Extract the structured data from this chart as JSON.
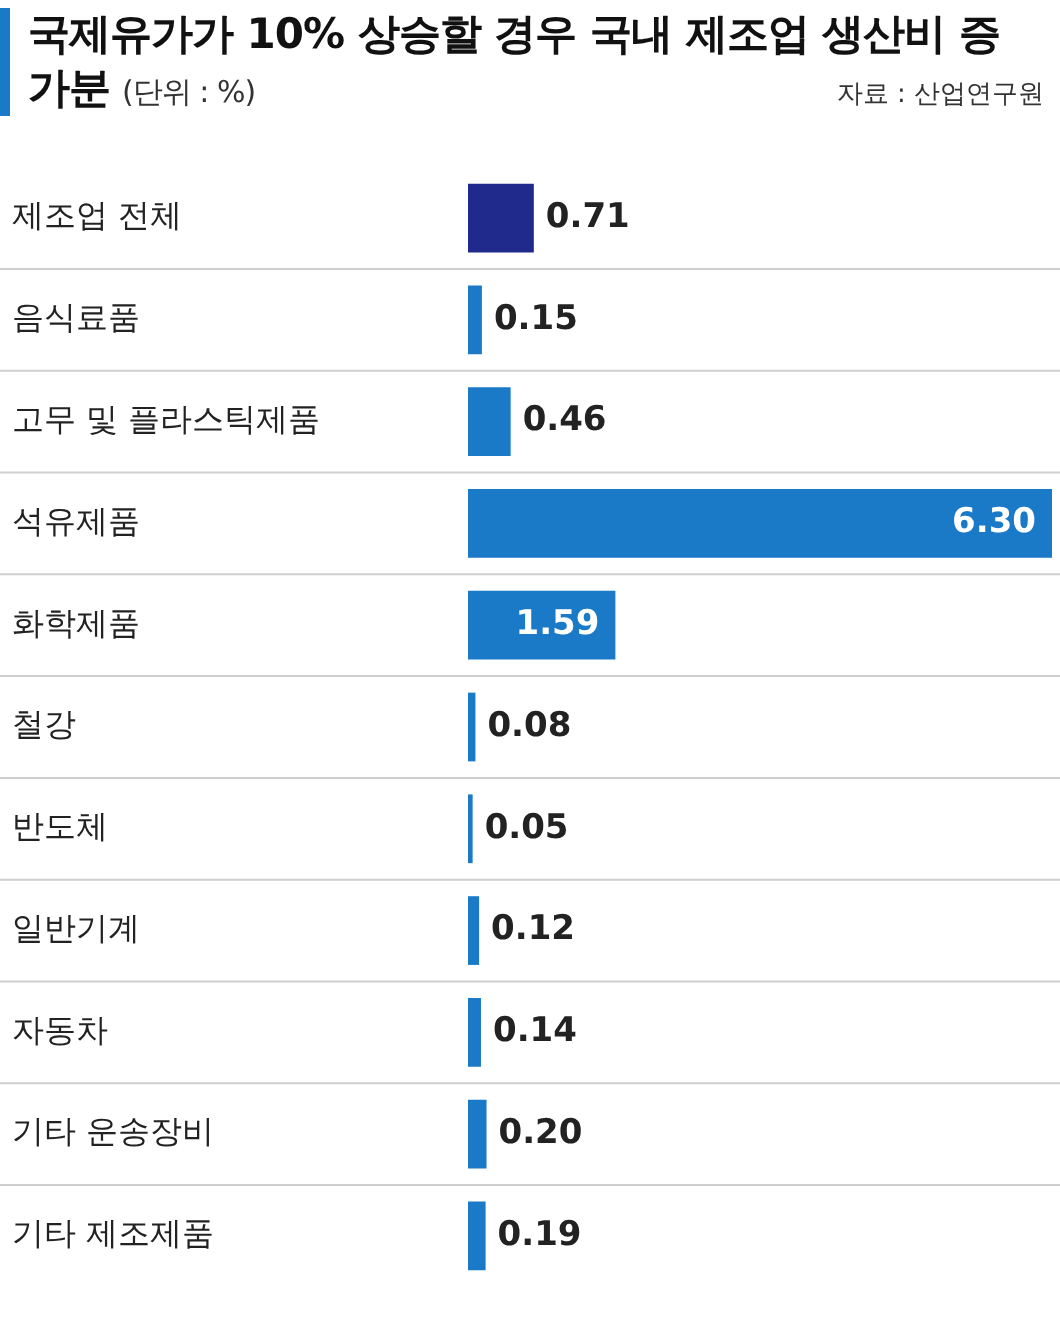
{
  "chart_data": {
    "type": "bar",
    "orientation": "horizontal",
    "title": "국제유가가 10% 상승할 경우 국내 제조업 생산비 증가분",
    "subtitle": "(단위 : %)",
    "annotations": [
      "자료 : 산업연구원"
    ],
    "categories": [
      "제조업 전체",
      "음식료품",
      "고무 및 플라스틱제품",
      "석유제품",
      "화학제품",
      "철강",
      "반도체",
      "일반기계",
      "자동차",
      "기타 운송장비",
      "기타 제조제품"
    ],
    "values": [
      0.71,
      0.15,
      0.46,
      6.3,
      1.59,
      0.08,
      0.05,
      0.12,
      0.14,
      0.2,
      0.19
    ],
    "value_labels": [
      "0.71",
      "0.15",
      "0.46",
      "6.30",
      "1.59",
      "0.08",
      "0.05",
      "0.12",
      "0.14",
      "0.20",
      "0.19"
    ],
    "colors": [
      "#1f2a8c",
      "#1a7ac8",
      "#1a7ac8",
      "#1a7ac8",
      "#1a7ac8",
      "#1a7ac8",
      "#1a7ac8",
      "#1a7ac8",
      "#1a7ac8",
      "#1a7ac8",
      "#1a7ac8"
    ],
    "grid": false,
    "legend": false
  }
}
